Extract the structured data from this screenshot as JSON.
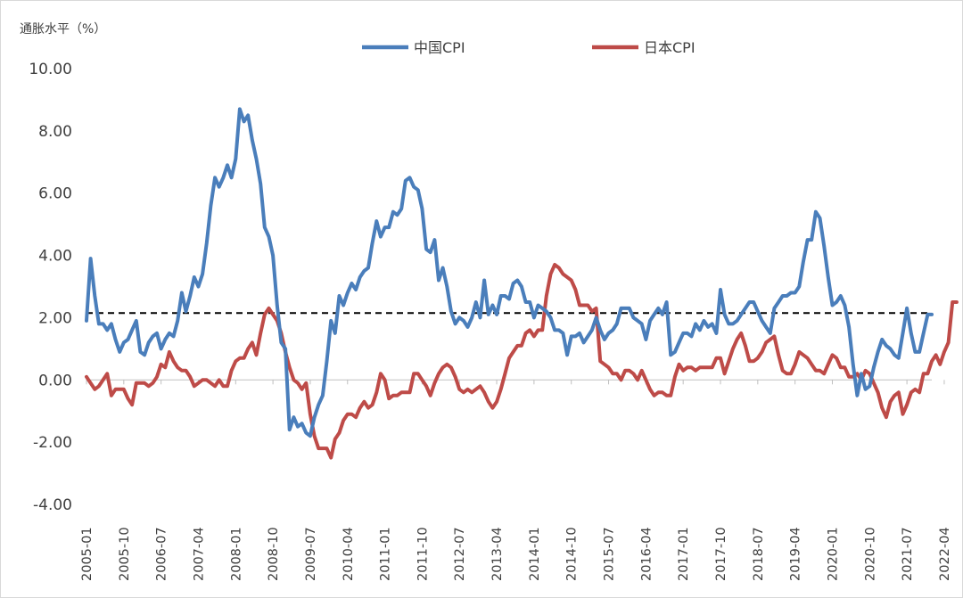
{
  "chart_data": {
    "type": "line",
    "ylabel": "通胀水平（%）",
    "ylim": [
      -4,
      10
    ],
    "yticks": [
      "10.00",
      "8.00",
      "6.00",
      "4.00",
      "2.00",
      "0.00",
      "-2.00",
      "-4.00"
    ],
    "xticks": [
      "2005-01",
      "2005-10",
      "2006-07",
      "2007-04",
      "2008-01",
      "2008-10",
      "2009-07",
      "2010-04",
      "2011-01",
      "2011-10",
      "2012-07",
      "2013-04",
      "2014-01",
      "2014-10",
      "2015-07",
      "2016-04",
      "2017-01",
      "2017-10",
      "2018-07",
      "2019-04",
      "2020-01",
      "2020-10",
      "2021-07",
      "2022-04"
    ],
    "x_start": "2005-01",
    "reference_line": {
      "value": 2.15,
      "style": "dashed"
    },
    "legend_position": "top",
    "series": [
      {
        "name": "中国CPI",
        "color": "#4a7ebb",
        "values": [
          1.9,
          3.9,
          2.7,
          1.8,
          1.8,
          1.6,
          1.8,
          1.3,
          0.9,
          1.2,
          1.3,
          1.6,
          1.9,
          0.9,
          0.8,
          1.2,
          1.4,
          1.5,
          1.0,
          1.3,
          1.5,
          1.4,
          1.9,
          2.8,
          2.2,
          2.7,
          3.3,
          3.0,
          3.4,
          4.4,
          5.6,
          6.5,
          6.2,
          6.5,
          6.9,
          6.5,
          7.1,
          8.7,
          8.3,
          8.5,
          7.7,
          7.1,
          6.3,
          4.9,
          4.6,
          4.0,
          2.4,
          1.2,
          1.0,
          -1.6,
          -1.2,
          -1.5,
          -1.4,
          -1.7,
          -1.8,
          -1.2,
          -0.8,
          -0.5,
          0.6,
          1.9,
          1.5,
          2.7,
          2.4,
          2.8,
          3.1,
          2.9,
          3.3,
          3.5,
          3.6,
          4.4,
          5.1,
          4.6,
          4.9,
          4.9,
          5.4,
          5.3,
          5.5,
          6.4,
          6.5,
          6.2,
          6.1,
          5.5,
          4.2,
          4.1,
          4.5,
          3.2,
          3.6,
          3.0,
          2.2,
          1.8,
          2.0,
          1.9,
          1.7,
          2.0,
          2.5,
          2.0,
          3.2,
          2.1,
          2.4,
          2.1,
          2.7,
          2.7,
          2.6,
          3.1,
          3.2,
          3.0,
          2.5,
          2.5,
          2.0,
          2.4,
          2.3,
          2.2,
          2.0,
          1.6,
          1.6,
          1.5,
          0.8,
          1.4,
          1.4,
          1.5,
          1.2,
          1.4,
          1.6,
          2.0,
          1.6,
          1.3,
          1.5,
          1.6,
          1.8,
          2.3,
          2.3,
          2.3,
          2.0,
          1.9,
          1.8,
          1.3,
          1.9,
          2.1,
          2.3,
          2.1,
          2.5,
          0.8,
          0.9,
          1.2,
          1.5,
          1.5,
          1.4,
          1.8,
          1.6,
          1.9,
          1.7,
          1.8,
          1.5,
          2.9,
          2.1,
          1.8,
          1.8,
          1.9,
          2.1,
          2.3,
          2.5,
          2.5,
          2.2,
          1.9,
          1.7,
          1.5,
          2.3,
          2.5,
          2.7,
          2.7,
          2.8,
          2.8,
          3.0,
          3.8,
          4.5,
          4.5,
          5.4,
          5.2,
          4.3,
          3.3,
          2.4,
          2.5,
          2.7,
          2.4,
          1.7,
          0.5,
          -0.5,
          0.2,
          -0.3,
          -0.2,
          0.4,
          0.9,
          1.3,
          1.1,
          1.0,
          0.8,
          0.7,
          1.5,
          2.3,
          1.5,
          0.9,
          0.9,
          1.5,
          2.1,
          2.1
        ]
      },
      {
        "name": "日本CPI",
        "color": "#be4b48",
        "values": [
          0.1,
          -0.1,
          -0.3,
          -0.2,
          0.0,
          0.2,
          -0.5,
          -0.3,
          -0.3,
          -0.3,
          -0.6,
          -0.8,
          -0.1,
          -0.1,
          -0.1,
          -0.2,
          -0.1,
          0.1,
          0.5,
          0.4,
          0.9,
          0.6,
          0.4,
          0.3,
          0.3,
          0.1,
          -0.2,
          -0.1,
          0.0,
          0.0,
          -0.1,
          -0.2,
          0.0,
          -0.2,
          -0.2,
          0.3,
          0.6,
          0.7,
          0.7,
          1.0,
          1.2,
          0.8,
          1.5,
          2.1,
          2.3,
          2.1,
          1.9,
          1.5,
          0.9,
          0.4,
          0.0,
          -0.1,
          -0.3,
          -0.1,
          -1.1,
          -1.8,
          -2.2,
          -2.2,
          -2.2,
          -2.5,
          -1.9,
          -1.7,
          -1.3,
          -1.1,
          -1.1,
          -1.2,
          -0.9,
          -0.7,
          -0.9,
          -0.8,
          -0.4,
          0.2,
          0.0,
          -0.6,
          -0.5,
          -0.5,
          -0.4,
          -0.4,
          -0.4,
          0.2,
          0.2,
          0.0,
          -0.2,
          -0.5,
          -0.1,
          0.2,
          0.4,
          0.5,
          0.4,
          0.1,
          -0.3,
          -0.4,
          -0.3,
          -0.4,
          -0.3,
          -0.2,
          -0.4,
          -0.7,
          -0.9,
          -0.7,
          -0.3,
          0.2,
          0.7,
          0.9,
          1.1,
          1.1,
          1.5,
          1.6,
          1.4,
          1.6,
          1.6,
          2.7,
          3.4,
          3.7,
          3.6,
          3.4,
          3.3,
          3.2,
          2.9,
          2.4,
          2.4,
          2.4,
          2.2,
          2.3,
          0.6,
          0.5,
          0.4,
          0.2,
          0.2,
          0.0,
          0.3,
          0.3,
          0.2,
          0.0,
          0.3,
          0.0,
          -0.3,
          -0.5,
          -0.4,
          -0.4,
          -0.5,
          -0.5,
          0.1,
          0.5,
          0.3,
          0.4,
          0.4,
          0.3,
          0.4,
          0.4,
          0.4,
          0.4,
          0.7,
          0.7,
          0.2,
          0.6,
          1.0,
          1.3,
          1.5,
          1.1,
          0.6,
          0.6,
          0.7,
          0.9,
          1.2,
          1.3,
          1.4,
          0.8,
          0.3,
          0.2,
          0.2,
          0.5,
          0.9,
          0.8,
          0.7,
          0.5,
          0.3,
          0.3,
          0.2,
          0.5,
          0.8,
          0.7,
          0.4,
          0.4,
          0.1,
          0.1,
          0.2,
          0.0,
          0.3,
          0.2,
          -0.1,
          -0.4,
          -0.9,
          -1.2,
          -0.7,
          -0.5,
          -0.4,
          -1.1,
          -0.8,
          -0.4,
          -0.3,
          -0.4,
          0.2,
          0.2,
          0.6,
          0.8,
          0.5,
          0.9,
          1.2,
          2.5,
          2.5
        ]
      }
    ]
  }
}
